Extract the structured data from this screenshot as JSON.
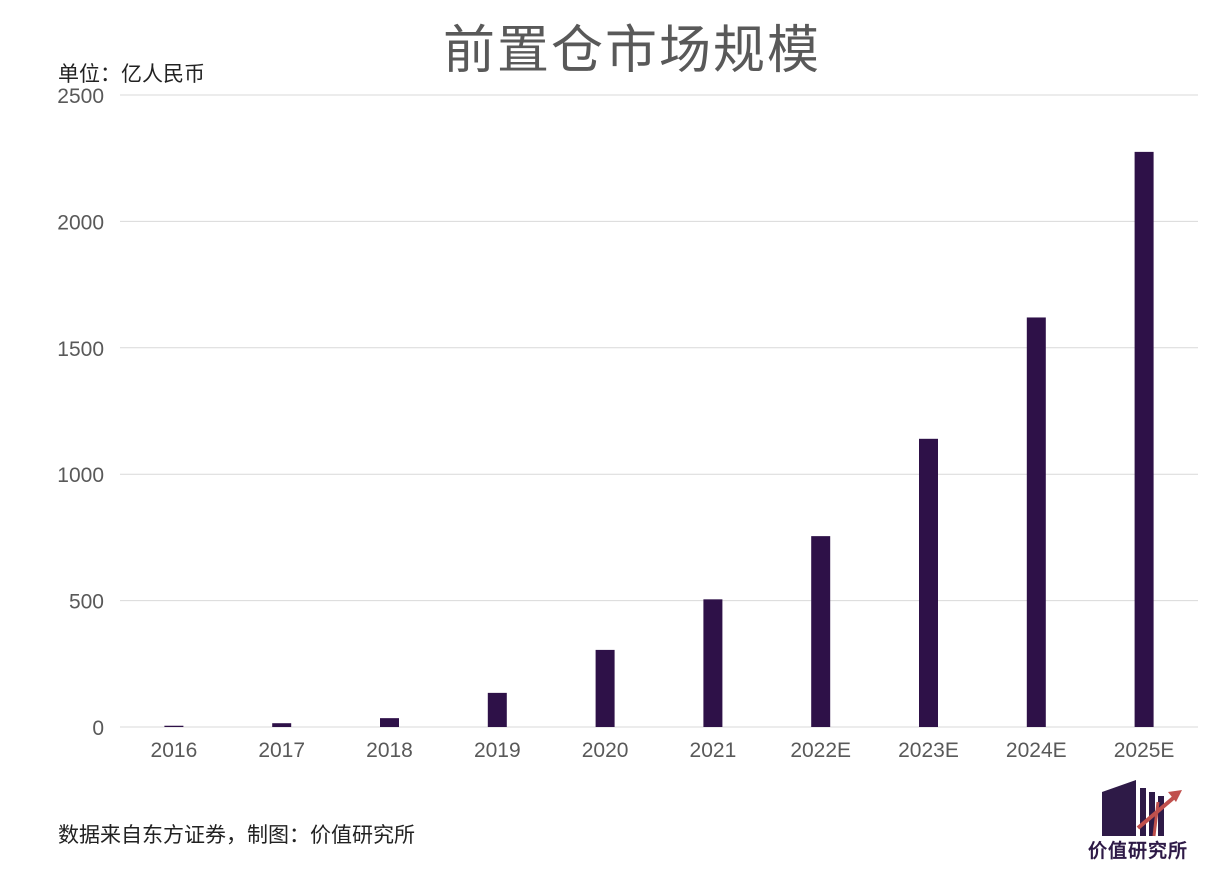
{
  "unit": "单位：亿人民币",
  "source": "数据来自东方证券，制图：价值研究所",
  "logo_text": "价值研究所",
  "colors": {
    "bar": "#2e1148",
    "grid": "#d9d9d9",
    "text": "#595959",
    "logo_accent": "#c0504d"
  },
  "chart_data": {
    "type": "bar",
    "title": "前置仓市场规模",
    "categories": [
      "2016",
      "2017",
      "2018",
      "2019",
      "2020",
      "2021",
      "2022E",
      "2023E",
      "2024E",
      "2025E"
    ],
    "values": [
      5,
      15,
      35,
      135,
      305,
      505,
      755,
      1140,
      1620,
      2275
    ],
    "ylim": [
      0,
      2500
    ],
    "yticks": [
      0,
      500,
      1000,
      1500,
      2000,
      2500
    ],
    "grid": true,
    "legend": "none"
  }
}
